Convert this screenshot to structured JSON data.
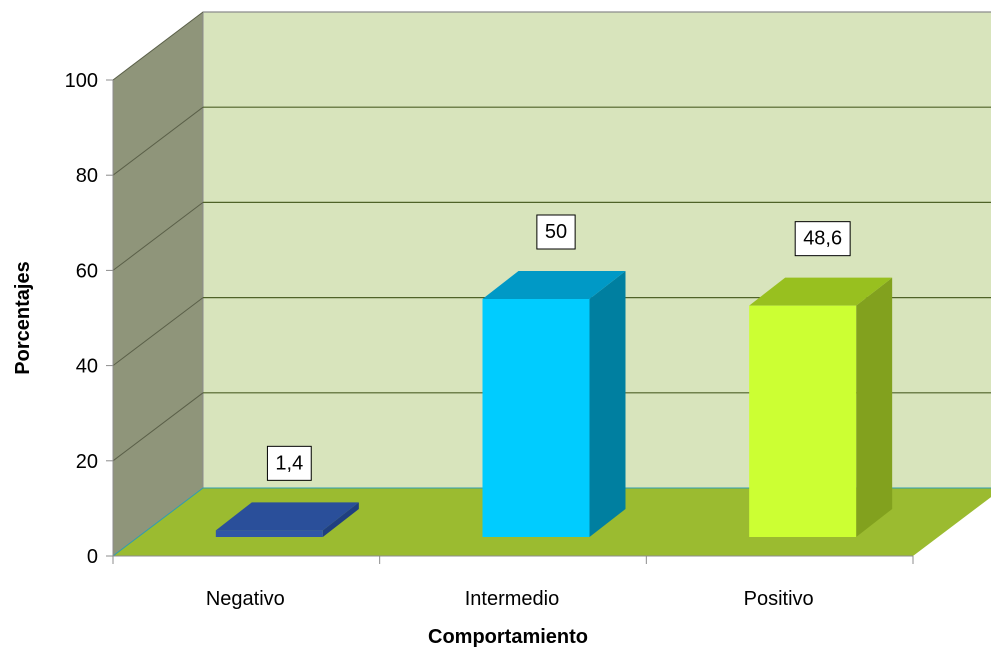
{
  "chart_data": {
    "type": "bar",
    "style": "3d-column",
    "categories": [
      "Negativo",
      "Intermedio",
      "Positivo"
    ],
    "values": [
      1.4,
      50,
      48.6
    ],
    "data_labels": [
      "1,4",
      "50",
      "48,6"
    ],
    "xlabel": "Comportamiento",
    "ylabel": "Porcentajes",
    "ylim": [
      0,
      100
    ],
    "yticks": [
      "0",
      "20",
      "40",
      "60",
      "80",
      "100"
    ],
    "grid": true,
    "legend": "none",
    "colors": {
      "bars": [
        {
          "front": "#2e56a6",
          "top": "#2a4f9a",
          "side": "#1f3f80"
        },
        {
          "front": "#00ccff",
          "top": "#0099c6",
          "side": "#007fa0"
        },
        {
          "front": "#ccff33",
          "top": "#98c01f",
          "side": "#82a11e"
        }
      ],
      "back_wall": "#d8e4bc",
      "side_wall": "#8f957a",
      "floor": "#9bbb30",
      "gridline": "#4f6228",
      "floor_gridline": "#2f9db0"
    }
  }
}
